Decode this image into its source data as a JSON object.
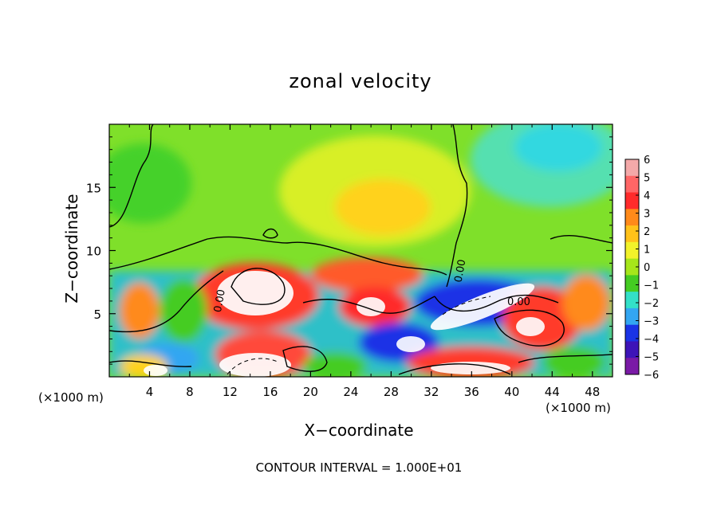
{
  "chart_data": {
    "type": "heatmap",
    "title": "zonal velocity",
    "xlabel": "X−coordinate",
    "ylabel": "Z−coordinate",
    "x_unit_label": "(×1000 m)",
    "x_ticks": [
      "4",
      "8",
      "12",
      "16",
      "20",
      "24",
      "28",
      "32",
      "36",
      "40",
      "44",
      "48"
    ],
    "y_ticks": [
      "5",
      "10",
      "15"
    ],
    "xlim": [
      0,
      50
    ],
    "ylim": [
      0,
      20
    ],
    "colorbar": {
      "ticks": [
        "6",
        "5",
        "4",
        "3",
        "2",
        "1",
        "0",
        "−1",
        "−2",
        "−3",
        "−4",
        "−5",
        "−6"
      ],
      "colors": [
        "#f4a9a9",
        "#ff6666",
        "#ff2b2b",
        "#ff8a1a",
        "#ffc21a",
        "#f2f22a",
        "#a6e61a",
        "#44cc22",
        "#33e0c8",
        "#33a6f2",
        "#1a33e6",
        "#3d14b8",
        "#7a1aa6"
      ]
    },
    "contour_labels": [
      "0.00",
      "0.00",
      "0.00"
    ],
    "contour_interval_text": "CONTOUR INTERVAL = 1.000E+01"
  }
}
